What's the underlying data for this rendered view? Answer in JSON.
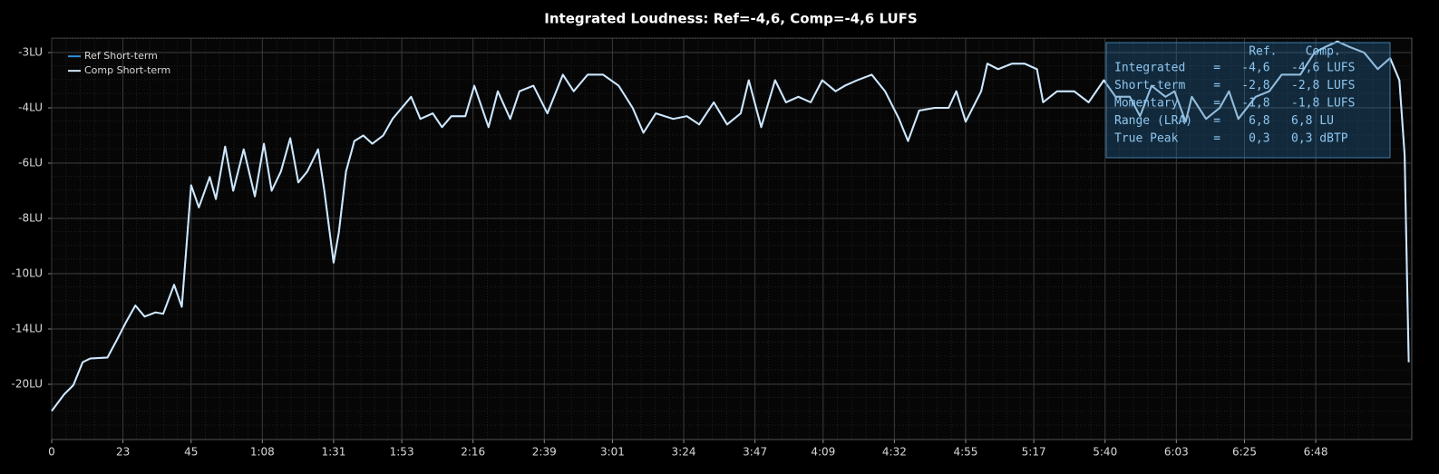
{
  "chart_data": {
    "type": "line",
    "title": "Integrated Loudness: Ref=-4,6, Comp=-4,6 LUFS",
    "x": [
      0,
      4,
      7,
      10,
      12.5,
      18,
      21,
      24,
      27,
      30,
      33.5,
      36,
      39.5,
      42,
      45,
      47.5,
      51,
      53,
      56,
      58.6,
      62,
      65.6,
      68.5,
      71,
      74,
      77,
      79.6,
      82.5,
      86,
      88,
      91,
      92.7,
      95,
      97.7,
      100.6,
      103.5,
      107,
      110,
      116,
      119,
      123,
      126,
      129,
      133.5,
      136.4,
      141,
      144,
      148,
      151,
      155.5,
      160,
      165,
      168.5,
      173,
      178,
      183,
      187.5,
      191,
      195,
      200.6,
      205,
      209,
      213.7,
      218,
      222.4,
      225,
      229,
      233.5,
      237,
      241,
      245,
      248.7,
      253,
      256,
      260,
      264.7,
      269,
      273.5,
      276.4,
      280,
      285,
      289.5,
      292,
      295,
      300,
      302,
      305.5,
      310,
      314,
      318,
      320,
      324.5,
      330,
      334.7,
      339.6,
      343.4,
      348,
      351.3,
      355,
      359.5,
      362.4,
      366,
      368,
      372.6,
      377,
      380,
      383,
      388.6,
      393,
      397,
      403,
      407.6,
      411,
      415,
      419,
      423.6,
      428,
      432,
      435,
      436.7,
      438
    ],
    "series": [
      {
        "name": "Ref Short-term",
        "color": "#2b8fdc",
        "values": [
          -22.9,
          -21.1,
          -20.1,
          -17.6,
          -17.2,
          -17.1,
          -15.2,
          -13.5,
          -12.3,
          -13.1,
          -12.8,
          -12.9,
          -10.8,
          -12.4,
          -6.8,
          -7.6,
          -6.5,
          -7.3,
          -5.4,
          -7.0,
          -5.5,
          -7.2,
          -5.3,
          -7.0,
          -6.3,
          -5.1,
          -6.7,
          -6.3,
          -5.5,
          -7.0,
          -9.6,
          -8.5,
          -6.3,
          -5.2,
          -5.0,
          -5.3,
          -5.0,
          -4.4,
          -3.8,
          -4.4,
          -4.2,
          -4.7,
          -4.3,
          -4.3,
          -3.6,
          -4.7,
          -3.7,
          -4.4,
          -3.7,
          -3.6,
          -4.2,
          -3.4,
          -3.7,
          -3.4,
          -3.4,
          -3.6,
          -4.0,
          -4.9,
          -4.2,
          -4.4,
          -4.3,
          -4.6,
          -3.9,
          -4.6,
          -4.2,
          -3.5,
          -4.7,
          -3.5,
          -3.9,
          -3.8,
          -3.9,
          -3.5,
          -3.7,
          -3.6,
          -3.5,
          -3.4,
          -3.7,
          -4.4,
          -5.2,
          -4.1,
          -4.0,
          -4.0,
          -3.7,
          -4.5,
          -3.7,
          -3.2,
          -3.3,
          -3.2,
          -3.2,
          -3.3,
          -3.9,
          -3.7,
          -3.7,
          -3.9,
          -3.5,
          -3.8,
          -3.8,
          -4.3,
          -3.6,
          -3.8,
          -3.7,
          -4.5,
          -3.8,
          -4.4,
          -4.0,
          -3.7,
          -4.4,
          -3.8,
          -3.7,
          -3.4,
          -3.4,
          -3.0,
          -2.9,
          -2.8,
          -2.9,
          -3.0,
          -3.3,
          -3.1,
          -3.5,
          -5.7,
          -17.6
        ]
      },
      {
        "name": "Comp Short-term",
        "color": "#d2e6f8",
        "values": [
          -22.9,
          -21.1,
          -20.1,
          -17.6,
          -17.2,
          -17.1,
          -15.2,
          -13.5,
          -12.3,
          -13.1,
          -12.8,
          -12.9,
          -10.8,
          -12.4,
          -6.8,
          -7.6,
          -6.5,
          -7.3,
          -5.4,
          -7.0,
          -5.5,
          -7.2,
          -5.3,
          -7.0,
          -6.3,
          -5.1,
          -6.7,
          -6.3,
          -5.5,
          -7.0,
          -9.6,
          -8.5,
          -6.3,
          -5.2,
          -5.0,
          -5.3,
          -5.0,
          -4.4,
          -3.8,
          -4.4,
          -4.2,
          -4.7,
          -4.3,
          -4.3,
          -3.6,
          -4.7,
          -3.7,
          -4.4,
          -3.7,
          -3.6,
          -4.2,
          -3.4,
          -3.7,
          -3.4,
          -3.4,
          -3.6,
          -4.0,
          -4.9,
          -4.2,
          -4.4,
          -4.3,
          -4.6,
          -3.9,
          -4.6,
          -4.2,
          -3.5,
          -4.7,
          -3.5,
          -3.9,
          -3.8,
          -3.9,
          -3.5,
          -3.7,
          -3.6,
          -3.5,
          -3.4,
          -3.7,
          -4.4,
          -5.2,
          -4.1,
          -4.0,
          -4.0,
          -3.7,
          -4.5,
          -3.7,
          -3.2,
          -3.3,
          -3.2,
          -3.2,
          -3.3,
          -3.9,
          -3.7,
          -3.7,
          -3.9,
          -3.5,
          -3.8,
          -3.8,
          -4.3,
          -3.6,
          -3.8,
          -3.7,
          -4.5,
          -3.8,
          -4.4,
          -4.0,
          -3.7,
          -4.4,
          -3.8,
          -3.7,
          -3.4,
          -3.4,
          -3.0,
          -2.9,
          -2.8,
          -2.9,
          -3.0,
          -3.3,
          -3.1,
          -3.5,
          -5.7,
          -17.6
        ]
      }
    ],
    "xlim": [
      0,
      439
    ],
    "xticks": [
      0,
      23,
      45,
      {
        "value": 68,
        "label": "1:08"
      },
      {
        "value": 91,
        "label": "1:31"
      },
      {
        "value": 113,
        "label": "1:53"
      },
      {
        "value": 136,
        "label": "2:16"
      },
      {
        "value": 159,
        "label": "2:39"
      },
      {
        "value": 181,
        "label": "3:01"
      },
      {
        "value": 204,
        "label": "3:24"
      },
      {
        "value": 227,
        "label": "3:47"
      },
      {
        "value": 249,
        "label": "4:09"
      },
      {
        "value": 272,
        "label": "4:32"
      },
      {
        "value": 295,
        "label": "4:55"
      },
      {
        "value": 317,
        "label": "5:17"
      },
      {
        "value": 340,
        "label": "5:40"
      },
      {
        "value": 363,
        "label": "6:03"
      },
      {
        "value": 385,
        "label": "6:25"
      },
      {
        "value": 408,
        "label": "6:48"
      }
    ],
    "ylim": [
      -26,
      -2.74
    ],
    "yticks": [
      {
        "value": -3,
        "label": "-3LU"
      },
      {
        "value": -4,
        "label": "-4LU"
      },
      {
        "value": -6,
        "label": "-6LU"
      },
      {
        "value": -8,
        "label": "-8LU"
      },
      {
        "value": -10,
        "label": "-10LU"
      },
      {
        "value": -14,
        "label": "-14LU"
      },
      {
        "value": -20,
        "label": "-20LU"
      }
    ],
    "grid": true,
    "legend": "top-left",
    "stats": {
      "header": [
        "Ref.",
        "Comp."
      ],
      "separator": "=",
      "rows": [
        {
          "label": "Integrated",
          "ref": "-4,6",
          "comp": "-4,6 LUFS"
        },
        {
          "label": "Short-term",
          "ref": "-2,8",
          "comp": "-2,8 LUFS"
        },
        {
          "label": "Momentary",
          "ref": "-1,8",
          "comp": "-1,8 LUFS"
        },
        {
          "label": "Range (LRA)",
          "ref": "6,8",
          "comp": "6,8 LU"
        },
        {
          "label": "True Peak",
          "ref": "0,3",
          "comp": "0,3 dBTP"
        }
      ]
    }
  }
}
